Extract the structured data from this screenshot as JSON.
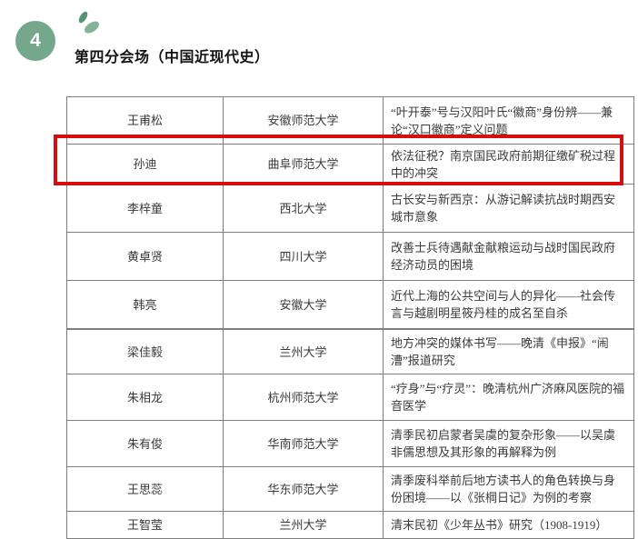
{
  "header": {
    "badge_number": "4",
    "title": "第四分会场（中国近现代史）"
  },
  "colors": {
    "badge_green": "#74a78c",
    "leaf_dark_green": "#569372",
    "leaf_light_green": "#82b497",
    "highlight_red": "#d40f0f",
    "table_border_gray": "#7f7f7f",
    "text_dark": "#3a3a3a"
  },
  "tables": [
    {
      "rows": [
        {
          "name": "王甫松",
          "university": "安徽师范大学",
          "paper_title": "“叶开泰”号与汉阳叶氏“徽商”身份辨——兼论“汉口徽商”定义问题",
          "highlighted": false
        },
        {
          "name": "孙迪",
          "university": "曲阜师范大学",
          "paper_title": "依法征税？南京国民政府前期征缴矿税过程中的冲突",
          "highlighted": true
        },
        {
          "name": "李梓童",
          "university": "西北大学",
          "paper_title": "古长安与新西京：从游记解读抗战时期西安城市意象",
          "highlighted": false
        },
        {
          "name": "黄卓贤",
          "university": "四川大学",
          "paper_title": "改善士兵待遇献金献粮运动与战时国民政府经济动员的困境",
          "highlighted": false
        },
        {
          "name": "韩亮",
          "university": "安徽大学",
          "paper_title": "近代上海的公共空间与人的异化——社会传言与越剧明星筱丹桂的成名至自杀",
          "highlighted": false
        }
      ]
    },
    {
      "rows": [
        {
          "name": "梁佳毅",
          "university": "兰州大学",
          "paper_title": "地方冲突的媒体书写——晚清《申报》“闹漕”报道研究",
          "highlighted": false
        },
        {
          "name": "朱相龙",
          "university": "杭州师范大学",
          "paper_title": "“疗身”与“疗灵”：晚清杭州广济麻风医院的福音医学",
          "highlighted": false
        },
        {
          "name": "朱有俊",
          "university": "华南师范大学",
          "paper_title": "清季民初启蒙者吴虞的复杂形象——以吴虞非儒思想及其形象的再解释为例",
          "highlighted": false
        },
        {
          "name": "王思蕊",
          "university": "华东师范大学",
          "paper_title": "清季废科举前后地方读书人的角色转换与身份困境——以《张棡日记》为例的考察",
          "highlighted": false
        },
        {
          "name": "王智莹",
          "university": "兰州大学",
          "paper_title": "清末民初《少年丛书》研究（1908-1919）",
          "highlighted": false
        }
      ]
    }
  ]
}
